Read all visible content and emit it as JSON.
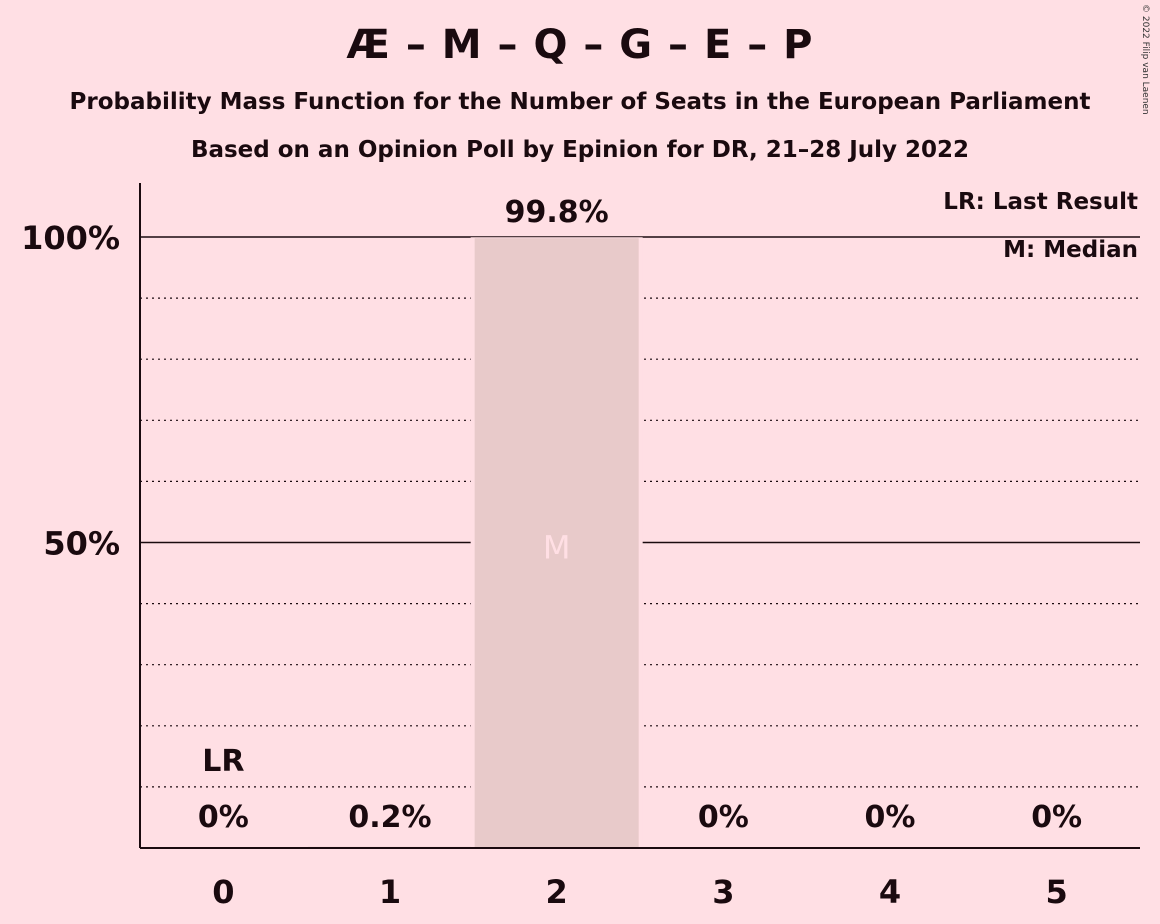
{
  "title": "Æ – M – Q – G – E – P",
  "subtitle": "Probability Mass Function for the Number of Seats in the European Parliament",
  "subtitle2": "Based on an Opinion Poll by Epinion for DR, 21–28 July 2022",
  "copyright": "© 2022 Filip van Laenen",
  "legend": {
    "last_result": "LR: Last Result",
    "median": "M: Median"
  },
  "colors": {
    "background": "#FFDFE4",
    "bar": "#E8CACA",
    "median_marker": "#FFDFE4"
  },
  "chart_data": {
    "type": "bar",
    "categories": [
      "0",
      "1",
      "2",
      "3",
      "4",
      "5"
    ],
    "values": [
      0,
      0.2,
      99.8,
      0,
      0,
      0
    ],
    "data_labels": [
      "0%",
      "0.2%",
      "99.8%",
      "0%",
      "0%",
      "0%"
    ],
    "ylim": [
      0,
      100
    ],
    "yticks": [
      {
        "value": 50,
        "label": "50%"
      },
      {
        "value": 100,
        "label": "100%"
      }
    ],
    "minor_gridlines": [
      10,
      20,
      30,
      40,
      60,
      70,
      80,
      90
    ],
    "last_result": {
      "category": "0",
      "label": "LR"
    },
    "median": {
      "category": "2",
      "label": "M"
    },
    "legend_position": "top-right",
    "grid": true
  }
}
